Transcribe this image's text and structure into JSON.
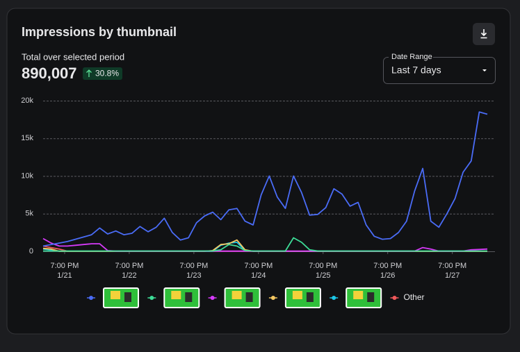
{
  "header": {
    "title": "Impressions by thumbnail",
    "subtitle": "Total over selected period",
    "total": "890,007",
    "change": "30.8%",
    "date_range_label": "Date Range",
    "date_range_value": "Last 7 days"
  },
  "chart_data": {
    "type": "line",
    "x": [
      0,
      3,
      6,
      9,
      12,
      15,
      18,
      21,
      24,
      27,
      30,
      33,
      36,
      39,
      42,
      45,
      48,
      51,
      54,
      57,
      60,
      63,
      66,
      69,
      72,
      75,
      78,
      81,
      84,
      87,
      90,
      93,
      96,
      99,
      102,
      105,
      108,
      111,
      114,
      117,
      120,
      123,
      126,
      129,
      132,
      135,
      138,
      141,
      144,
      147,
      150,
      153,
      156,
      159,
      162,
      165
    ],
    "xlim": [
      0,
      165
    ],
    "xticks": [
      {
        "value": 8,
        "label": "7:00 PM"
      },
      {
        "value": 32,
        "label": "7:00 PM"
      },
      {
        "value": 56,
        "label": "7:00 PM"
      },
      {
        "value": 80,
        "label": "7:00 PM"
      },
      {
        "value": 104,
        "label": "7:00 PM"
      },
      {
        "value": 128,
        "label": "7:00 PM"
      },
      {
        "value": 152,
        "label": "7:00 PM"
      }
    ],
    "xtick_dates": [
      "1/21",
      "1/22",
      "1/23",
      "1/24",
      "1/25",
      "1/26",
      "1/27"
    ],
    "ylim": [
      0,
      20000
    ],
    "yticks": [
      {
        "value": 0,
        "label": "0"
      },
      {
        "value": 5000,
        "label": "5k"
      },
      {
        "value": 10000,
        "label": "10k"
      },
      {
        "value": 15000,
        "label": "15k"
      },
      {
        "value": 20000,
        "label": "20k"
      }
    ],
    "grid": true,
    "series": [
      {
        "color": "#4a6cf7",
        "values": [
          700,
          900,
          1100,
          1300,
          1600,
          1900,
          2200,
          3100,
          2300,
          2700,
          2200,
          2400,
          3300,
          2600,
          3200,
          4400,
          2500,
          1500,
          1800,
          3800,
          4700,
          5200,
          4200,
          5500,
          5700,
          4000,
          3500,
          7500,
          10000,
          7200,
          5700,
          10000,
          7800,
          4800,
          4900,
          5800,
          8300,
          7600,
          6000,
          6500,
          3500,
          2000,
          1600,
          1700,
          2500,
          4000,
          8000,
          11000,
          4000,
          3200,
          5000,
          7000,
          10500,
          12000,
          18500,
          18200
        ]
      },
      {
        "color": "#3ddc97",
        "values": [
          50,
          50,
          50,
          50,
          50,
          50,
          50,
          50,
          50,
          50,
          50,
          50,
          50,
          50,
          50,
          50,
          50,
          50,
          50,
          50,
          50,
          50,
          200,
          900,
          700,
          100,
          50,
          50,
          50,
          50,
          50,
          1800,
          1200,
          200,
          50,
          50,
          50,
          50,
          50,
          50,
          50,
          50,
          50,
          50,
          50,
          50,
          50,
          50,
          50,
          50,
          50,
          50,
          50,
          50,
          50,
          50
        ]
      },
      {
        "color": "#d63af9",
        "values": [
          1700,
          1100,
          700,
          700,
          800,
          900,
          1000,
          1000,
          100,
          30,
          30,
          30,
          30,
          30,
          30,
          30,
          30,
          30,
          30,
          30,
          30,
          30,
          30,
          30,
          30,
          30,
          30,
          30,
          30,
          30,
          30,
          30,
          30,
          30,
          30,
          30,
          30,
          30,
          30,
          30,
          30,
          30,
          30,
          30,
          30,
          30,
          30,
          500,
          300,
          30,
          30,
          30,
          30,
          200,
          250,
          300
        ]
      },
      {
        "color": "#f5c862",
        "values": [
          400,
          300,
          10,
          10,
          10,
          10,
          10,
          10,
          10,
          10,
          10,
          10,
          10,
          10,
          10,
          10,
          10,
          10,
          10,
          10,
          10,
          100,
          900,
          1000,
          1500,
          200,
          10,
          10,
          10,
          10,
          10,
          10,
          10,
          10,
          10,
          10,
          10,
          10,
          10,
          10,
          10,
          10,
          10,
          10,
          10,
          10,
          10,
          10,
          10,
          10,
          10,
          10,
          10,
          10,
          10,
          10
        ]
      },
      {
        "color": "#1cc8e8",
        "values": [
          300,
          200,
          10,
          10,
          10,
          10,
          10,
          10,
          10,
          10,
          10,
          10,
          10,
          10,
          10,
          10,
          10,
          10,
          10,
          10,
          10,
          10,
          800,
          1100,
          1200,
          100,
          10,
          10,
          10,
          10,
          10,
          10,
          10,
          10,
          10,
          10,
          10,
          10,
          10,
          10,
          10,
          10,
          10,
          10,
          10,
          10,
          10,
          10,
          10,
          10,
          10,
          10,
          10,
          10,
          10,
          10
        ]
      },
      {
        "name": "Other",
        "color": "#f0585a",
        "values": [
          700,
          500,
          300,
          20,
          20,
          20,
          20,
          20,
          20,
          20,
          20,
          20,
          20,
          20,
          20,
          20,
          20,
          20,
          20,
          20,
          20,
          20,
          20,
          20,
          20,
          20,
          20,
          20,
          20,
          20,
          20,
          20,
          20,
          20,
          20,
          20,
          20,
          20,
          20,
          20,
          20,
          20,
          20,
          20,
          20,
          20,
          20,
          20,
          20,
          20,
          20,
          20,
          20,
          20,
          20,
          20
        ]
      }
    ]
  }
}
